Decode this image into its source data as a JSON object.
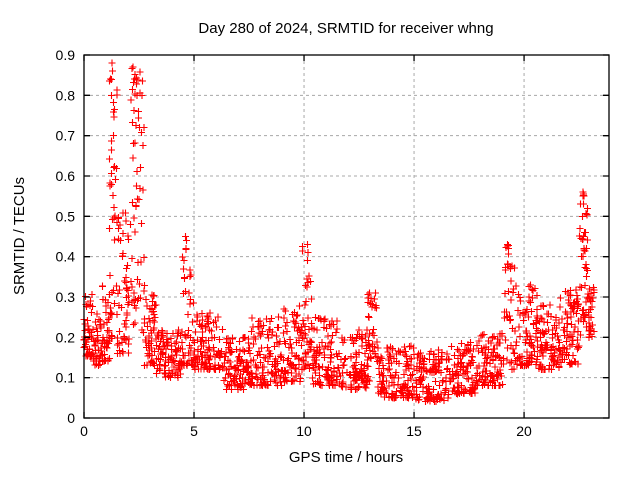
{
  "page": {
    "background": "#ffffff"
  },
  "chart_data": {
    "type": "scatter",
    "title": "Day 280 of 2024, SRMTID for receiver whng",
    "xlabel": "GPS time / hours",
    "ylabel": "SRMTID / TECUs",
    "xlim": [
      0,
      23.86
    ],
    "ylim": [
      0,
      0.9
    ],
    "xticks": [
      0,
      5,
      10,
      15,
      20
    ],
    "yticks": [
      0,
      0.1,
      0.2,
      0.3,
      0.4,
      0.5,
      0.6,
      0.7,
      0.8,
      0.9
    ],
    "grid": true,
    "grid_style": "dashed",
    "grid_color": "#a8a8a8",
    "frame_color": "#000000",
    "legend": "none",
    "marker": {
      "shape": "plus",
      "color": "#ff0000",
      "size": 7,
      "stroke_width": 1.1
    },
    "notable_points": [
      [
        1.27,
        0.88
      ],
      [
        1.3,
        0.86
      ],
      [
        1.24,
        0.8
      ],
      [
        1.33,
        0.7
      ],
      [
        2.22,
        0.87
      ],
      [
        2.3,
        0.84
      ],
      [
        2.42,
        0.8
      ],
      [
        2.47,
        0.76
      ],
      [
        2.52,
        0.72
      ],
      [
        4.62,
        0.45
      ],
      [
        4.66,
        0.44
      ],
      [
        4.64,
        0.42
      ],
      [
        10.15,
        0.43
      ],
      [
        10.18,
        0.41
      ],
      [
        10.16,
        0.39
      ],
      [
        12.98,
        0.31
      ],
      [
        13.05,
        0.29
      ],
      [
        19.25,
        0.43
      ],
      [
        19.3,
        0.42
      ],
      [
        19.28,
        0.38
      ],
      [
        20.3,
        0.33
      ],
      [
        22.68,
        0.56
      ],
      [
        22.72,
        0.55
      ],
      [
        22.7,
        0.53
      ],
      [
        22.66,
        0.5
      ],
      [
        22.74,
        0.46
      ]
    ],
    "density_segments": [
      {
        "x0": 0.0,
        "x1": 0.4,
        "n": 45,
        "ymin": 0.15,
        "ymax": 0.31,
        "bias": 1.5
      },
      {
        "x0": 0.4,
        "x1": 0.8,
        "n": 42,
        "ymin": 0.13,
        "ymax": 0.26,
        "bias": 1.4
      },
      {
        "x0": 0.8,
        "x1": 1.15,
        "n": 36,
        "ymin": 0.14,
        "ymax": 0.33,
        "bias": 1.4
      },
      {
        "x0": 1.15,
        "x1": 1.5,
        "n": 42,
        "ymin": 0.18,
        "ymax": 0.88,
        "bias": 1.2
      },
      {
        "x0": 1.5,
        "x1": 2.1,
        "n": 55,
        "ymin": 0.16,
        "ymax": 0.52,
        "bias": 1.7
      },
      {
        "x0": 2.1,
        "x1": 2.75,
        "n": 62,
        "ymin": 0.2,
        "ymax": 0.87,
        "bias": 1.0
      },
      {
        "x0": 2.75,
        "x1": 3.3,
        "n": 50,
        "ymin": 0.13,
        "ymax": 0.33,
        "bias": 1.5
      },
      {
        "x0": 3.3,
        "x1": 4.4,
        "n": 90,
        "ymin": 0.1,
        "ymax": 0.22,
        "bias": 1.2
      },
      {
        "x0": 4.4,
        "x1": 5.0,
        "n": 52,
        "ymin": 0.13,
        "ymax": 0.45,
        "bias": 1.8
      },
      {
        "x0": 5.0,
        "x1": 6.3,
        "n": 105,
        "ymin": 0.12,
        "ymax": 0.26,
        "bias": 1.5
      },
      {
        "x0": 6.3,
        "x1": 7.6,
        "n": 105,
        "ymin": 0.07,
        "ymax": 0.2,
        "bias": 1.3
      },
      {
        "x0": 7.6,
        "x1": 9.0,
        "n": 112,
        "ymin": 0.08,
        "ymax": 0.25,
        "bias": 1.5
      },
      {
        "x0": 9.0,
        "x1": 9.9,
        "n": 72,
        "ymin": 0.09,
        "ymax": 0.28,
        "bias": 1.5
      },
      {
        "x0": 9.9,
        "x1": 10.35,
        "n": 40,
        "ymin": 0.12,
        "ymax": 0.43,
        "bias": 1.6
      },
      {
        "x0": 10.35,
        "x1": 11.7,
        "n": 108,
        "ymin": 0.08,
        "ymax": 0.25,
        "bias": 1.7
      },
      {
        "x0": 11.7,
        "x1": 12.9,
        "n": 96,
        "ymin": 0.07,
        "ymax": 0.22,
        "bias": 1.5
      },
      {
        "x0": 12.9,
        "x1": 13.35,
        "n": 38,
        "ymin": 0.09,
        "ymax": 0.31,
        "bias": 1.4
      },
      {
        "x0": 13.35,
        "x1": 15.0,
        "n": 130,
        "ymin": 0.05,
        "ymax": 0.18,
        "bias": 1.3
      },
      {
        "x0": 15.0,
        "x1": 16.6,
        "n": 125,
        "ymin": 0.04,
        "ymax": 0.17,
        "bias": 1.3
      },
      {
        "x0": 16.6,
        "x1": 17.8,
        "n": 95,
        "ymin": 0.06,
        "ymax": 0.19,
        "bias": 1.4
      },
      {
        "x0": 17.8,
        "x1": 19.1,
        "n": 100,
        "ymin": 0.08,
        "ymax": 0.21,
        "bias": 1.4
      },
      {
        "x0": 19.1,
        "x1": 19.6,
        "n": 38,
        "ymin": 0.12,
        "ymax": 0.43,
        "bias": 1.5
      },
      {
        "x0": 19.6,
        "x1": 20.6,
        "n": 85,
        "ymin": 0.13,
        "ymax": 0.33,
        "bias": 1.6
      },
      {
        "x0": 20.6,
        "x1": 21.6,
        "n": 85,
        "ymin": 0.12,
        "ymax": 0.28,
        "bias": 1.4
      },
      {
        "x0": 21.6,
        "x1": 22.5,
        "n": 80,
        "ymin": 0.13,
        "ymax": 0.32,
        "bias": 1.3
      },
      {
        "x0": 22.5,
        "x1": 22.9,
        "n": 45,
        "ymin": 0.18,
        "ymax": 0.56,
        "bias": 1.1
      },
      {
        "x0": 22.9,
        "x1": 23.2,
        "n": 28,
        "ymin": 0.2,
        "ymax": 0.33,
        "bias": 1.2
      }
    ]
  }
}
